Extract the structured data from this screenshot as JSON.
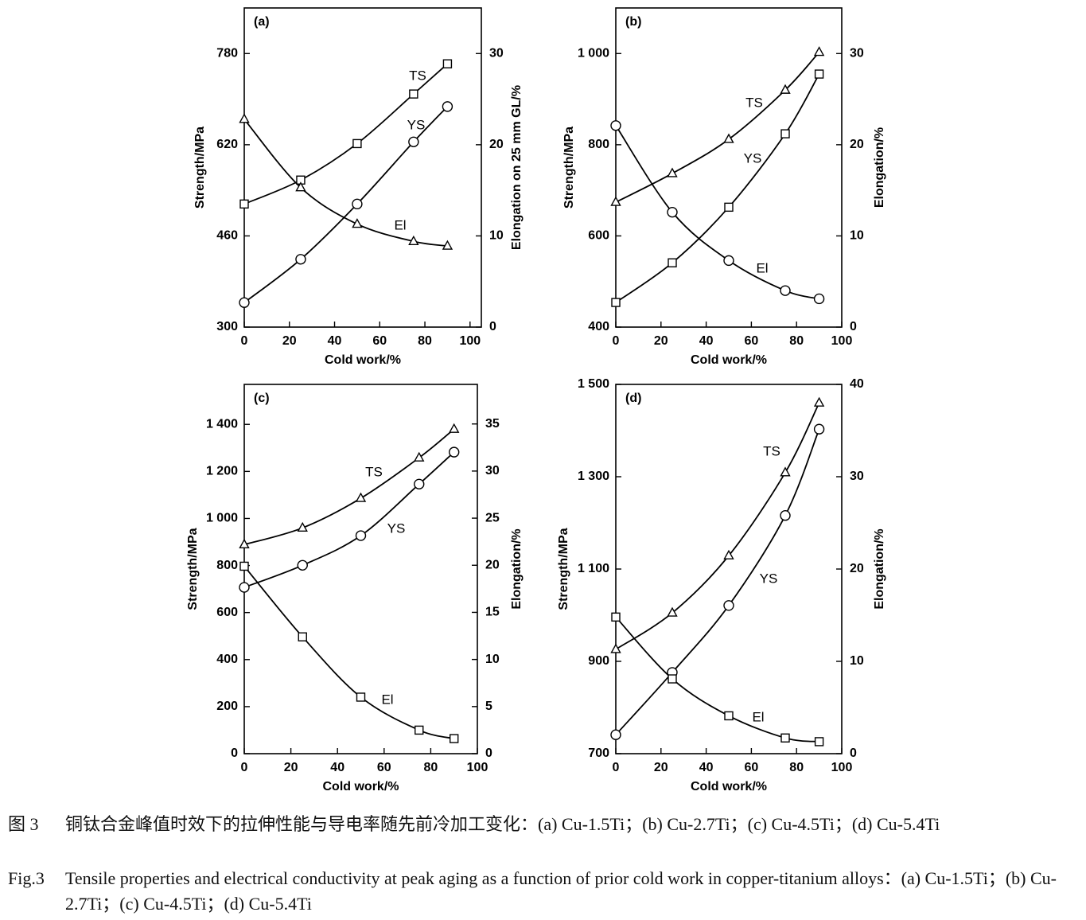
{
  "chart_data": [
    {
      "type": "line",
      "panel_label": "(a)",
      "x_label": "Cold work/%",
      "y_label": "Strength/MPa",
      "y2_label": "Elongation on 25 mm GL/%",
      "x": [
        0,
        25,
        50,
        75,
        90
      ],
      "xlim": [
        0,
        105
      ],
      "xticks": [
        0,
        20,
        40,
        60,
        80,
        100
      ],
      "ylim": [
        300,
        860
      ],
      "yticks": [
        300,
        460,
        620,
        780
      ],
      "y2lim": [
        0,
        35
      ],
      "y2ticks": [
        0,
        10,
        20,
        30
      ],
      "series": [
        {
          "name": "TS",
          "color": "#000000",
          "marker": "square",
          "values": [
            516,
            558,
            622,
            709,
            762
          ]
        },
        {
          "name": "YS",
          "color": "#000000",
          "marker": "circle",
          "values": [
            343,
            419,
            516,
            625,
            687
          ]
        },
        {
          "name": "El",
          "color": "#000000",
          "marker": "triangle",
          "axis": "y2",
          "values": [
            22.8,
            15.3,
            11.3,
            9.4,
            8.9
          ]
        }
      ]
    },
    {
      "type": "line",
      "panel_label": "(b)",
      "x_label": "Cold work/%",
      "y_label": "Strength/MPa",
      "y2_label": "Elongation/%",
      "x": [
        0,
        25,
        50,
        75,
        90
      ],
      "xlim": [
        0,
        100
      ],
      "xticks": [
        0,
        20,
        40,
        60,
        80,
        100
      ],
      "ylim": [
        400,
        1100
      ],
      "yticks": [
        400,
        600,
        800,
        {
          "value": 1000,
          "label": "1 000"
        }
      ],
      "y2lim": [
        0,
        35
      ],
      "y2ticks": [
        0,
        10,
        20,
        30
      ],
      "series": [
        {
          "name": "TS",
          "color": "#000000",
          "marker": "triangle",
          "values": [
            674,
            737,
            812,
            920,
            1003
          ]
        },
        {
          "name": "YS",
          "color": "#000000",
          "marker": "square",
          "values": [
            454,
            541,
            663,
            824,
            955
          ]
        },
        {
          "name": "El",
          "color": "#000000",
          "marker": "circle",
          "axis": "y2",
          "values": [
            22.1,
            12.6,
            7.3,
            4.0,
            3.1
          ]
        }
      ]
    },
    {
      "type": "line",
      "panel_label": "(c)",
      "x_label": "Cold work/%",
      "y_label": "Strength/MPa",
      "y2_label": "Elongation/%",
      "x": [
        0,
        25,
        50,
        75,
        90
      ],
      "xlim": [
        0,
        100
      ],
      "xticks": [
        0,
        20,
        40,
        60,
        80,
        100
      ],
      "ylim": [
        0,
        1570
      ],
      "yticks": [
        0,
        200,
        400,
        600,
        800,
        {
          "value": 1000,
          "label": "1 000"
        },
        {
          "value": 1200,
          "label": "1 200"
        },
        {
          "value": 1400,
          "label": "1 400"
        }
      ],
      "y2lim": [
        0,
        39.2
      ],
      "y2ticks": [
        0,
        5,
        10,
        15,
        20,
        25,
        30,
        35
      ],
      "series": [
        {
          "name": "TS",
          "color": "#000000",
          "marker": "triangle",
          "values": [
            889,
            960,
            1086,
            1258,
            1380
          ]
        },
        {
          "name": "YS",
          "color": "#000000",
          "marker": "circle",
          "values": [
            707,
            801,
            927,
            1146,
            1282
          ]
        },
        {
          "name": "El",
          "color": "#000000",
          "marker": "square",
          "axis": "y2",
          "values": [
            19.9,
            12.4,
            6.0,
            2.5,
            1.6
          ]
        }
      ]
    },
    {
      "type": "line",
      "panel_label": "(d)",
      "x_label": "Cold work/%",
      "y_label": "Strength/MPa",
      "y2_label": "Elongation/%",
      "x": [
        0,
        25,
        50,
        75,
        90
      ],
      "xlim": [
        0,
        100
      ],
      "xticks": [
        0,
        20,
        40,
        60,
        80,
        100
      ],
      "ylim": [
        700,
        1500
      ],
      "yticks": [
        700,
        900,
        {
          "value": 1100,
          "label": "1 100"
        },
        {
          "value": 1300,
          "label": "1 300"
        },
        {
          "value": 1500,
          "label": "1 500"
        }
      ],
      "y2lim": [
        0,
        40
      ],
      "y2ticks": [
        0,
        10,
        20,
        30,
        40
      ],
      "series": [
        {
          "name": "TS",
          "color": "#000000",
          "marker": "triangle",
          "values": [
            926,
            1005,
            1129,
            1309,
            1460
          ]
        },
        {
          "name": "YS",
          "color": "#000000",
          "marker": "circle",
          "values": [
            741,
            876,
            1021,
            1216,
            1403
          ]
        },
        {
          "name": "El",
          "color": "#000000",
          "marker": "square",
          "axis": "y2",
          "values": [
            14.8,
            8.1,
            4.1,
            1.7,
            1.3
          ]
        }
      ]
    }
  ],
  "caption": {
    "cn_label": "图 3",
    "cn_text": "铜钛合金峰值时效下的拉伸性能与导电率随先前冷加工变化：(a) Cu-1.5Ti；(b) Cu-2.7Ti；(c) Cu-4.5Ti；(d) Cu-5.4Ti",
    "en_label": "Fig.3",
    "en_text": "Tensile properties and electrical conductivity at peak aging as a function of prior cold work in copper-titanium alloys：(a) Cu-1.5Ti；(b) Cu-2.7Ti；(c) Cu-4.5Ti；(d) Cu-5.4Ti"
  }
}
